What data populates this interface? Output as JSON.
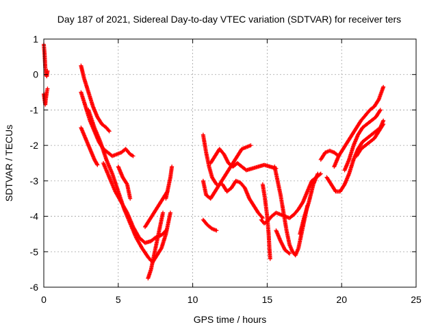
{
  "chart_data": {
    "type": "scatter",
    "title": "Day 187 of 2021, Sidereal Day-to-day VTEC variation (SDTVAR) for receiver ters",
    "xlabel": "GPS time / hours",
    "ylabel": "SDTVAR / TECUs",
    "xlim": [
      0,
      25
    ],
    "ylim": [
      -6,
      1
    ],
    "xticks": [
      0,
      5,
      10,
      15,
      20,
      25
    ],
    "yticks": [
      1,
      0,
      -1,
      -2,
      -3,
      -4,
      -5,
      -6
    ],
    "grid": true,
    "marker": "plus",
    "color": "#ff0000",
    "series": [
      {
        "tracks": [
          [
            [
              0.0,
              0.85
            ],
            [
              0.05,
              0.6
            ],
            [
              0.1,
              0.2
            ],
            [
              0.15,
              0.0
            ],
            [
              0.2,
              -0.05
            ],
            [
              0.25,
              0.1
            ]
          ],
          [
            [
              0.0,
              -0.55
            ],
            [
              0.05,
              -0.7
            ],
            [
              0.1,
              -0.85
            ],
            [
              0.15,
              -0.65
            ],
            [
              0.2,
              -0.5
            ],
            [
              0.25,
              -0.4
            ]
          ],
          [
            [
              2.5,
              0.25
            ],
            [
              2.7,
              -0.1
            ],
            [
              3.0,
              -0.5
            ],
            [
              3.3,
              -0.9
            ],
            [
              3.6,
              -1.2
            ],
            [
              3.9,
              -1.4
            ],
            [
              4.2,
              -1.5
            ],
            [
              4.4,
              -1.6
            ]
          ],
          [
            [
              2.5,
              -0.5
            ],
            [
              2.8,
              -0.9
            ],
            [
              3.1,
              -1.3
            ],
            [
              3.4,
              -1.6
            ],
            [
              3.7,
              -1.9
            ],
            [
              4.0,
              -2.1
            ],
            [
              4.3,
              -2.2
            ],
            [
              4.6,
              -2.3
            ],
            [
              4.9,
              -2.25
            ],
            [
              5.2,
              -2.2
            ],
            [
              5.5,
              -2.1
            ],
            [
              5.8,
              -2.25
            ],
            [
              6.0,
              -2.3
            ]
          ],
          [
            [
              2.5,
              -1.5
            ],
            [
              2.8,
              -1.8
            ],
            [
              3.1,
              -2.1
            ],
            [
              3.4,
              -2.4
            ],
            [
              3.6,
              -2.55
            ]
          ],
          [
            [
              3.0,
              -1.0
            ],
            [
              3.4,
              -1.5
            ],
            [
              3.8,
              -1.9
            ],
            [
              4.2,
              -2.4
            ],
            [
              4.6,
              -2.8
            ],
            [
              5.0,
              -3.3
            ],
            [
              5.4,
              -3.8
            ],
            [
              5.8,
              -4.2
            ],
            [
              6.2,
              -4.6
            ],
            [
              6.6,
              -4.9
            ],
            [
              7.0,
              -5.15
            ],
            [
              7.2,
              -5.25
            ]
          ],
          [
            [
              4.0,
              -2.5
            ],
            [
              4.4,
              -2.9
            ],
            [
              4.8,
              -3.3
            ],
            [
              5.2,
              -3.6
            ],
            [
              5.6,
              -3.9
            ],
            [
              6.0,
              -4.3
            ],
            [
              6.4,
              -4.6
            ],
            [
              6.8,
              -4.75
            ],
            [
              7.2,
              -4.7
            ],
            [
              7.5,
              -4.6
            ],
            [
              7.8,
              -4.55
            ],
            [
              8.0,
              -4.5
            ],
            [
              8.2,
              -4.4
            ]
          ],
          [
            [
              5.0,
              -2.6
            ],
            [
              5.3,
              -2.9
            ],
            [
              5.6,
              -3.1
            ],
            [
              5.8,
              -3.5
            ]
          ],
          [
            [
              7.0,
              -5.75
            ],
            [
              7.2,
              -5.5
            ],
            [
              7.4,
              -5.1
            ],
            [
              7.6,
              -4.7
            ],
            [
              7.8,
              -4.3
            ],
            [
              8.0,
              -3.9
            ]
          ],
          [
            [
              7.3,
              -5.3
            ],
            [
              7.6,
              -5.1
            ],
            [
              7.9,
              -4.9
            ],
            [
              8.2,
              -4.5
            ],
            [
              8.5,
              -3.9
            ]
          ],
          [
            [
              6.8,
              -4.3
            ],
            [
              7.1,
              -4.1
            ],
            [
              7.4,
              -3.9
            ],
            [
              7.7,
              -3.7
            ],
            [
              8.0,
              -3.5
            ],
            [
              8.3,
              -3.3
            ]
          ],
          [
            [
              8.2,
              -3.5
            ],
            [
              8.35,
              -3.2
            ],
            [
              8.5,
              -2.9
            ],
            [
              8.6,
              -2.6
            ]
          ],
          [
            [
              10.7,
              -1.7
            ],
            [
              10.9,
              -2.2
            ],
            [
              11.1,
              -2.6
            ],
            [
              11.3,
              -2.9
            ],
            [
              11.6,
              -3.1
            ]
          ],
          [
            [
              10.7,
              -3.0
            ],
            [
              10.9,
              -3.4
            ],
            [
              11.2,
              -3.5
            ],
            [
              11.5,
              -3.3
            ],
            [
              11.8,
              -3.1
            ],
            [
              12.1,
              -2.9
            ],
            [
              12.4,
              -2.7
            ],
            [
              12.7,
              -2.5
            ],
            [
              13.0,
              -2.3
            ],
            [
              13.3,
              -2.1
            ],
            [
              13.6,
              -2.05
            ],
            [
              13.9,
              -2.0
            ]
          ],
          [
            [
              10.7,
              -4.1
            ],
            [
              11.0,
              -4.25
            ],
            [
              11.3,
              -4.35
            ],
            [
              11.6,
              -4.4
            ]
          ],
          [
            [
              11.2,
              -2.5
            ],
            [
              11.5,
              -2.3
            ],
            [
              11.8,
              -2.1
            ],
            [
              12.1,
              -2.25
            ],
            [
              12.4,
              -2.5
            ],
            [
              12.7,
              -2.6
            ],
            [
              13.0,
              -2.5
            ],
            [
              13.3,
              -2.6
            ],
            [
              13.6,
              -2.7
            ],
            [
              14.0,
              -2.65
            ],
            [
              14.4,
              -2.6
            ],
            [
              14.8,
              -2.55
            ],
            [
              15.2,
              -2.6
            ],
            [
              15.6,
              -2.65
            ]
          ],
          [
            [
              12.0,
              -3.1
            ],
            [
              12.3,
              -3.3
            ],
            [
              12.6,
              -3.2
            ],
            [
              12.9,
              -3.0
            ],
            [
              13.2,
              -3.05
            ],
            [
              13.5,
              -3.2
            ],
            [
              13.8,
              -3.5
            ],
            [
              14.1,
              -3.7
            ],
            [
              14.4,
              -3.9
            ],
            [
              14.7,
              -4.05
            ]
          ],
          [
            [
              14.7,
              -3.1
            ],
            [
              14.85,
              -3.5
            ],
            [
              15.0,
              -4.0
            ],
            [
              15.1,
              -4.5
            ],
            [
              15.15,
              -4.9
            ],
            [
              15.2,
              -5.2
            ]
          ],
          [
            [
              14.6,
              -4.1
            ],
            [
              14.8,
              -4.2
            ],
            [
              15.0,
              -4.15
            ],
            [
              15.3,
              -4.0
            ],
            [
              15.6,
              -3.9
            ],
            [
              15.9,
              -3.95
            ],
            [
              16.2,
              -4.0
            ],
            [
              16.5,
              -4.05
            ],
            [
              16.8,
              -3.95
            ],
            [
              17.1,
              -3.8
            ],
            [
              17.4,
              -3.6
            ],
            [
              17.7,
              -3.3
            ],
            [
              18.0,
              -3.0
            ],
            [
              18.3,
              -2.9
            ],
            [
              18.6,
              -2.8
            ]
          ],
          [
            [
              15.5,
              -2.6
            ],
            [
              15.7,
              -3.0
            ],
            [
              15.9,
              -3.4
            ],
            [
              16.1,
              -3.9
            ],
            [
              16.3,
              -4.4
            ],
            [
              16.5,
              -4.8
            ],
            [
              16.7,
              -5.0
            ],
            [
              16.9,
              -5.1
            ],
            [
              17.1,
              -4.9
            ],
            [
              17.3,
              -4.5
            ],
            [
              17.5,
              -4.1
            ],
            [
              17.7,
              -3.7
            ]
          ],
          [
            [
              15.6,
              -4.4
            ],
            [
              15.9,
              -4.7
            ],
            [
              16.2,
              -4.95
            ],
            [
              16.5,
              -5.05
            ]
          ],
          [
            [
              17.2,
              -4.5
            ],
            [
              17.5,
              -4.0
            ],
            [
              17.8,
              -3.6
            ],
            [
              18.1,
              -3.1
            ],
            [
              18.4,
              -2.8
            ]
          ],
          [
            [
              18.6,
              -2.4
            ],
            [
              18.9,
              -2.2
            ],
            [
              19.2,
              -2.15
            ],
            [
              19.5,
              -2.2
            ],
            [
              19.8,
              -2.3
            ]
          ],
          [
            [
              19.0,
              -2.9
            ],
            [
              19.3,
              -3.1
            ],
            [
              19.6,
              -3.3
            ],
            [
              19.9,
              -3.3
            ],
            [
              20.2,
              -3.1
            ],
            [
              20.5,
              -2.8
            ],
            [
              20.8,
              -2.4
            ],
            [
              21.1,
              -2.1
            ],
            [
              21.4,
              -1.9
            ],
            [
              21.7,
              -1.8
            ],
            [
              22.0,
              -1.7
            ],
            [
              22.3,
              -1.6
            ],
            [
              22.6,
              -1.5
            ],
            [
              22.8,
              -1.3
            ]
          ],
          [
            [
              19.5,
              -2.6
            ],
            [
              19.8,
              -2.3
            ],
            [
              20.1,
              -2.1
            ],
            [
              20.4,
              -1.9
            ],
            [
              20.7,
              -1.7
            ],
            [
              21.0,
              -1.5
            ],
            [
              21.3,
              -1.3
            ],
            [
              21.6,
              -1.15
            ],
            [
              21.9,
              -1.0
            ],
            [
              22.2,
              -0.9
            ],
            [
              22.5,
              -0.7
            ],
            [
              22.8,
              -0.35
            ]
          ],
          [
            [
              20.2,
              -2.7
            ],
            [
              20.5,
              -2.4
            ],
            [
              20.8,
              -2.0
            ],
            [
              21.1,
              -1.7
            ],
            [
              21.4,
              -1.5
            ],
            [
              21.7,
              -1.4
            ],
            [
              22.0,
              -1.3
            ],
            [
              22.3,
              -1.2
            ],
            [
              22.6,
              -1.0
            ]
          ],
          [
            [
              21.0,
              -2.3
            ],
            [
              21.3,
              -2.1
            ],
            [
              21.6,
              -2.0
            ],
            [
              21.9,
              -1.9
            ],
            [
              22.2,
              -1.8
            ],
            [
              22.5,
              -1.6
            ],
            [
              22.8,
              -1.4
            ]
          ]
        ]
      }
    ]
  }
}
